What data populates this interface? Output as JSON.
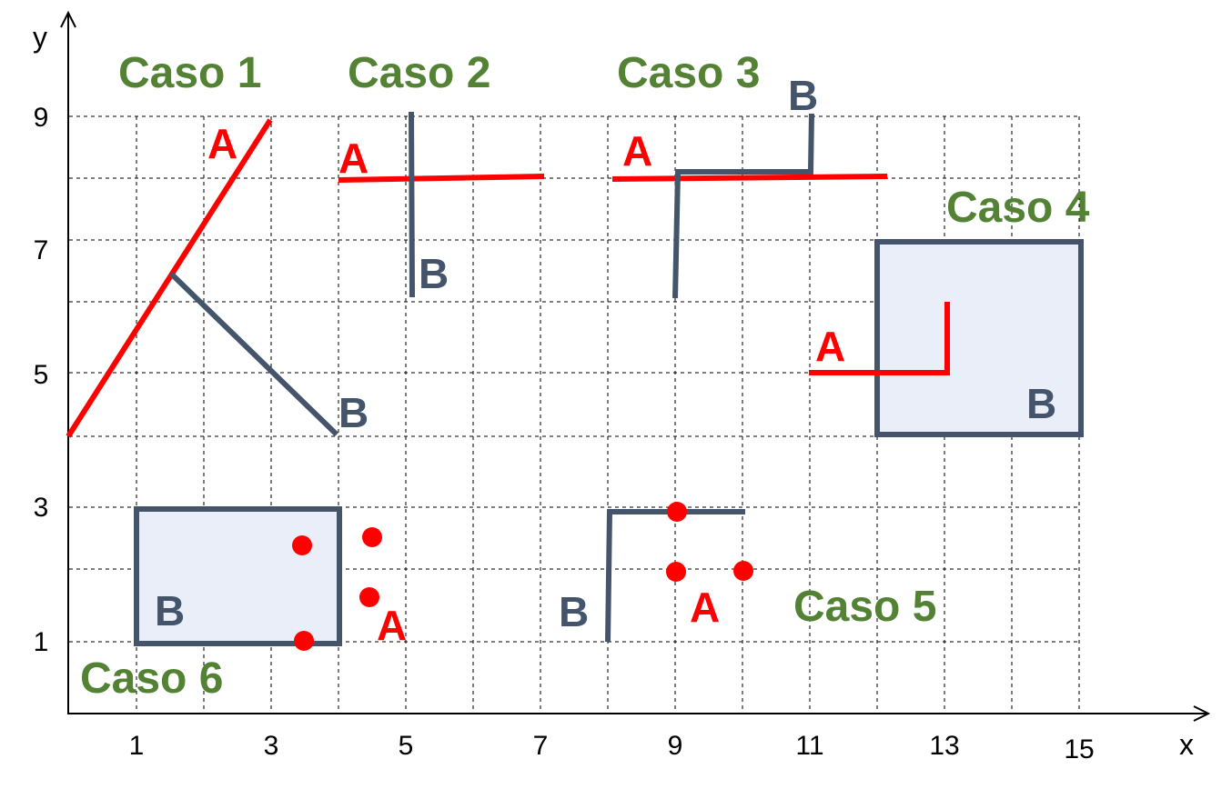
{
  "axes": {
    "x_name": "x",
    "y_name": "y",
    "x_ticks": [
      "1",
      "3",
      "5",
      "7",
      "9",
      "11",
      "13",
      "15"
    ],
    "y_ticks": [
      "9",
      "7",
      "5",
      "3",
      "1"
    ]
  },
  "labels": {
    "a": "A",
    "b": "B"
  },
  "cases": [
    {
      "title": "Caso 1"
    },
    {
      "title": "Caso 2"
    },
    {
      "title": "Caso 3"
    },
    {
      "title": "Caso 4"
    },
    {
      "title": "Caso 5"
    },
    {
      "title": "Caso 6"
    }
  ],
  "colors": {
    "a": "#ff0000",
    "b": "#44546a",
    "b_fill": "#e9eef8",
    "case_title": "#548235"
  }
}
